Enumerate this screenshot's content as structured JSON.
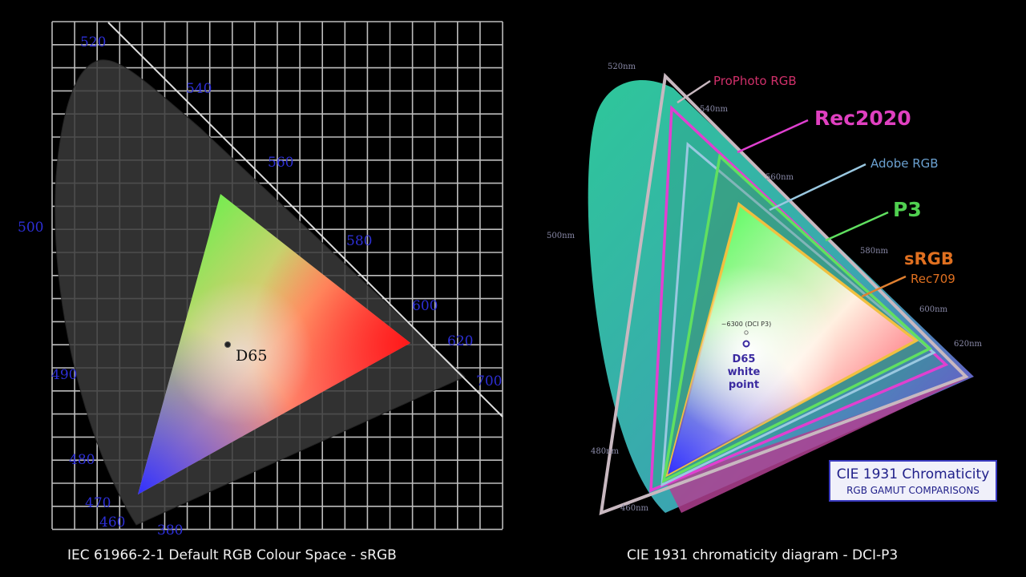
{
  "left": {
    "wavelengths": [
      "520",
      "540",
      "560",
      "580",
      "600",
      "620",
      "700",
      "500",
      "490",
      "480",
      "470",
      "460",
      "380"
    ],
    "white_point": "D65",
    "caption": "IEC 61966-2-1 Default RGB Colour Space - sRGB"
  },
  "right": {
    "wavelengths": [
      "520nm",
      "540nm",
      "560nm",
      "580nm",
      "600nm",
      "620nm",
      "500nm",
      "480nm",
      "460nm"
    ],
    "gamuts": [
      "ProPhoto RGB",
      "Rec2020",
      "Adobe RGB",
      "P3",
      "sRGB",
      "Rec709"
    ],
    "annotation": "~6300 (DCI P3)",
    "white_point": [
      "D65",
      "white",
      "point"
    ],
    "legend": {
      "title": "CIE 1931 Chromaticity",
      "subtitle": "RGB GAMUT COMPARISONS"
    },
    "caption": "CIE 1931 chromaticity diagram - DCI-P3"
  }
}
